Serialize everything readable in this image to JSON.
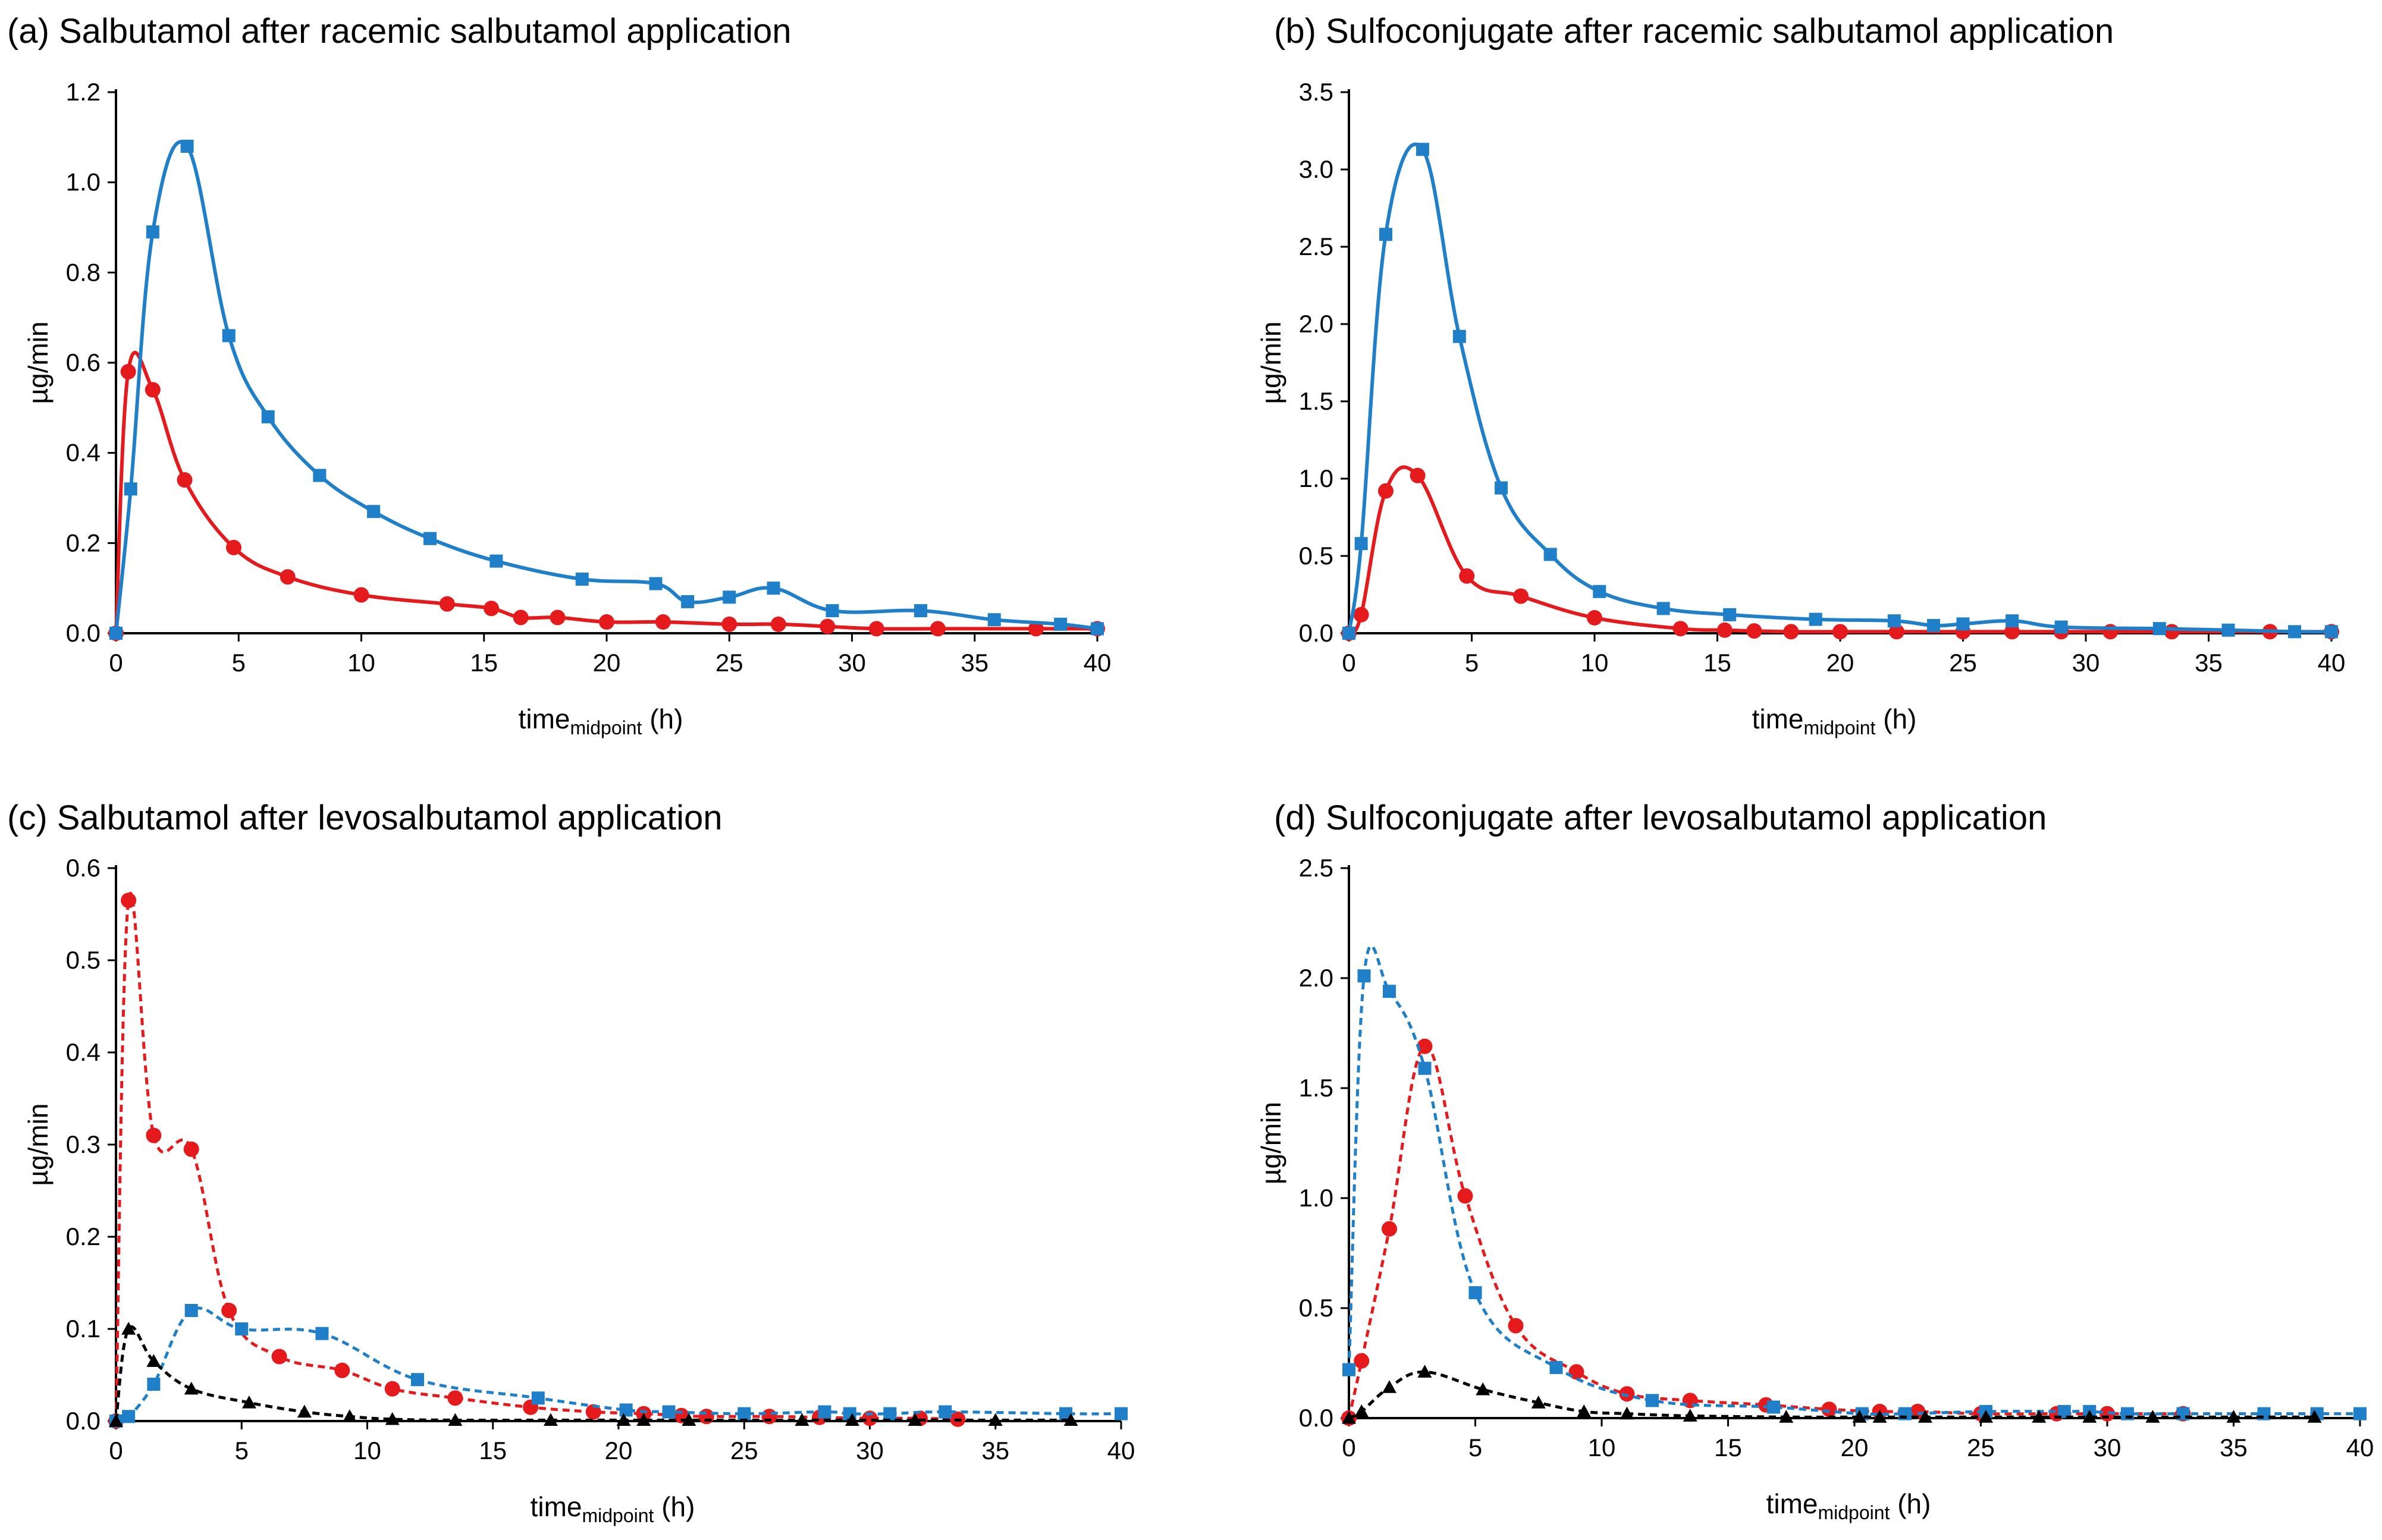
{
  "colors": {
    "red": "#e41a1c",
    "blue": "#1f7fc9",
    "black": "#000000"
  },
  "chart_data": [
    {
      "type": "line",
      "panel": "a",
      "title": "(a) Salbutamol after racemic salbutamol application",
      "xlabel": "time",
      "xlabel_sub": "midpoint",
      "xlabel_suffix": " (h)",
      "ylabel": "µg/min",
      "xlim": [
        0,
        40
      ],
      "ylim": [
        0,
        1.2
      ],
      "xticks": [
        "0",
        "5",
        "10",
        "15",
        "20",
        "25",
        "30",
        "35",
        "40"
      ],
      "yticks": [
        "0.0",
        "0.2",
        "0.4",
        "0.6",
        "0.8",
        "1.0",
        "1.2"
      ],
      "series": [
        {
          "name": "red-circle-series",
          "color": "#e41a1c",
          "marker": "circle",
          "dashed": false,
          "x": [
            0,
            0.5,
            1.5,
            2.8,
            4.8,
            7,
            10,
            13.5,
            15.3,
            16.5,
            18,
            20,
            22.3,
            25,
            27,
            29,
            31,
            33.5,
            37.5,
            40
          ],
          "y": [
            0,
            0.58,
            0.54,
            0.34,
            0.19,
            0.125,
            0.085,
            0.065,
            0.055,
            0.035,
            0.035,
            0.025,
            0.025,
            0.02,
            0.02,
            0.015,
            0.01,
            0.01,
            0.01,
            0.01
          ]
        },
        {
          "name": "blue-square-series",
          "color": "#1f7fc9",
          "marker": "square",
          "dashed": false,
          "x": [
            0,
            0.6,
            1.5,
            2.9,
            4.6,
            6.2,
            8.3,
            10.5,
            12.8,
            15.5,
            19,
            22,
            23.3,
            25,
            26.8,
            29.2,
            32.8,
            35.8,
            38.5,
            40
          ],
          "y": [
            0,
            0.32,
            0.89,
            1.08,
            0.66,
            0.48,
            0.35,
            0.27,
            0.21,
            0.16,
            0.12,
            0.11,
            0.07,
            0.08,
            0.1,
            0.05,
            0.05,
            0.03,
            0.02,
            0.01
          ]
        }
      ]
    },
    {
      "type": "line",
      "panel": "b",
      "title": "(b) Sulfoconjugate after racemic salbutamol application",
      "xlabel": "time",
      "xlabel_sub": "midpoint",
      "xlabel_suffix": " (h)",
      "ylabel": "µg/min",
      "xlim": [
        0,
        40
      ],
      "ylim": [
        0,
        3.5
      ],
      "xticks": [
        "0",
        "5",
        "10",
        "15",
        "20",
        "25",
        "30",
        "35",
        "40"
      ],
      "yticks": [
        "0.0",
        "0.5",
        "1.0",
        "1.5",
        "2.0",
        "2.5",
        "3.0",
        "3.5"
      ],
      "series": [
        {
          "name": "red-circle-series",
          "color": "#e41a1c",
          "marker": "circle",
          "dashed": false,
          "x": [
            0,
            0.5,
            1.5,
            2.8,
            4.8,
            7,
            10,
            13.5,
            15.3,
            16.5,
            18,
            20,
            22.3,
            25,
            27,
            29,
            31,
            33.5,
            37.5,
            40
          ],
          "y": [
            0,
            0.12,
            0.92,
            1.02,
            0.37,
            0.24,
            0.1,
            0.03,
            0.02,
            0.015,
            0.01,
            0.01,
            0.01,
            0.01,
            0.01,
            0.01,
            0.01,
            0.01,
            0.01,
            0.01
          ]
        },
        {
          "name": "blue-square-series",
          "color": "#1f7fc9",
          "marker": "square",
          "dashed": false,
          "x": [
            0,
            0.5,
            1.5,
            3,
            4.5,
            6.2,
            8.2,
            10.2,
            12.8,
            15.5,
            19,
            22.2,
            23.8,
            25,
            27,
            29,
            33,
            35.8,
            38.5,
            40
          ],
          "y": [
            0,
            0.58,
            2.58,
            3.13,
            1.92,
            0.94,
            0.51,
            0.27,
            0.16,
            0.12,
            0.09,
            0.08,
            0.05,
            0.06,
            0.08,
            0.04,
            0.03,
            0.02,
            0.01,
            0.01
          ]
        }
      ]
    },
    {
      "type": "line",
      "panel": "c",
      "title": "(c) Salbutamol after levosalbutamol application",
      "xlabel": "time",
      "xlabel_sub": "midpoint",
      "xlabel_suffix": " (h)",
      "ylabel": "µg/min",
      "xlim": [
        0,
        40
      ],
      "ylim": [
        0,
        0.6
      ],
      "xticks": [
        "0",
        "5",
        "10",
        "15",
        "20",
        "25",
        "30",
        "35",
        "40"
      ],
      "yticks": [
        "0.0",
        "0.1",
        "0.2",
        "0.3",
        "0.4",
        "0.5",
        "0.6"
      ],
      "series": [
        {
          "name": "red-circle-series",
          "color": "#e41a1c",
          "marker": "circle",
          "dashed": true,
          "x": [
            0,
            0.5,
            1.5,
            3,
            4.5,
            6.5,
            9,
            11,
            13.5,
            16.5,
            19,
            21,
            22.5,
            23.5,
            26,
            28,
            30,
            32,
            33.5
          ],
          "y": [
            0,
            0.565,
            0.31,
            0.295,
            0.12,
            0.07,
            0.055,
            0.035,
            0.025,
            0.015,
            0.01,
            0.008,
            0.006,
            0.005,
            0.005,
            0.004,
            0.003,
            0.003,
            0.002
          ]
        },
        {
          "name": "blue-square-series",
          "color": "#1f7fc9",
          "marker": "square",
          "dashed": true,
          "x": [
            0,
            0.5,
            1.5,
            3,
            5,
            8.2,
            12,
            16.8,
            20.3,
            22,
            25,
            28.2,
            29.2,
            30.8,
            33,
            37.8,
            40
          ],
          "y": [
            0,
            0.005,
            0.04,
            0.12,
            0.1,
            0.095,
            0.045,
            0.025,
            0.012,
            0.01,
            0.008,
            0.01,
            0.008,
            0.008,
            0.01,
            0.008,
            0.008
          ]
        },
        {
          "name": "black-triangle-series",
          "color": "#000000",
          "marker": "triangle",
          "dashed": true,
          "x": [
            0,
            0.5,
            1.5,
            3,
            5.3,
            7.5,
            9.3,
            11,
            13.5,
            17.3,
            20.2,
            21,
            22.8,
            27.3,
            29.3,
            31.8,
            35,
            38
          ],
          "y": [
            0,
            0.1,
            0.065,
            0.035,
            0.02,
            0.01,
            0.005,
            0.002,
            0.001,
            0.001,
            0.001,
            0.001,
            0.001,
            0.001,
            0.001,
            0.001,
            0.001,
            0.001
          ]
        }
      ]
    },
    {
      "type": "line",
      "panel": "d",
      "title": "(d) Sulfoconjugate after levosalbutamol application",
      "xlabel": "time",
      "xlabel_sub": "midpoint",
      "xlabel_suffix": " (h)",
      "ylabel": "µg/min",
      "xlim": [
        0,
        40
      ],
      "ylim": [
        0,
        2.5
      ],
      "xticks": [
        "0",
        "5",
        "10",
        "15",
        "20",
        "25",
        "30",
        "35",
        "40"
      ],
      "yticks": [
        "0.0",
        "0.5",
        "1.0",
        "1.5",
        "2.0",
        "2.5"
      ],
      "series": [
        {
          "name": "red-circle-series",
          "color": "#e41a1c",
          "marker": "circle",
          "dashed": true,
          "x": [
            0,
            0.5,
            1.6,
            3,
            4.6,
            6.6,
            9,
            11,
            13.5,
            16.5,
            19,
            21,
            22.5,
            25,
            28,
            30,
            33
          ],
          "y": [
            0,
            0.26,
            0.86,
            1.69,
            1.01,
            0.42,
            0.21,
            0.11,
            0.08,
            0.06,
            0.04,
            0.03,
            0.03,
            0.02,
            0.02,
            0.02,
            0.02
          ]
        },
        {
          "name": "blue-square-series",
          "color": "#1f7fc9",
          "marker": "square",
          "dashed": true,
          "x": [
            0,
            0.6,
            1.6,
            3,
            5,
            8.2,
            12,
            16.8,
            20.3,
            22,
            25.2,
            28.3,
            29.3,
            30.8,
            33,
            36.2,
            38.3,
            40
          ],
          "y": [
            0.22,
            2.01,
            1.94,
            1.59,
            0.57,
            0.23,
            0.08,
            0.05,
            0.02,
            0.02,
            0.03,
            0.03,
            0.03,
            0.02,
            0.02,
            0.02,
            0.02,
            0.02
          ]
        },
        {
          "name": "black-triangle-series",
          "color": "#000000",
          "marker": "triangle",
          "dashed": true,
          "x": [
            0,
            0.5,
            1.6,
            3,
            5.3,
            7.5,
            9.3,
            11,
            13.5,
            17.3,
            20.2,
            21,
            22.8,
            25.2,
            27.3,
            29.3,
            31.8,
            35,
            38.2
          ],
          "y": [
            0,
            0.03,
            0.14,
            0.21,
            0.13,
            0.07,
            0.03,
            0.02,
            0.01,
            0.005,
            0.005,
            0.005,
            0.005,
            0.005,
            0.005,
            0.005,
            0.005,
            0.005,
            0.005
          ]
        }
      ]
    }
  ]
}
